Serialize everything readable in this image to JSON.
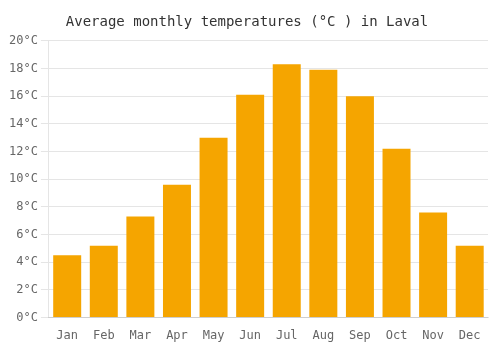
{
  "chart_data": {
    "type": "bar",
    "title": "Average monthly temperatures (°C ) in Laval",
    "categories": [
      "Jan",
      "Feb",
      "Mar",
      "Apr",
      "May",
      "Jun",
      "Jul",
      "Aug",
      "Sep",
      "Oct",
      "Nov",
      "Dec"
    ],
    "values": [
      4.5,
      5.2,
      7.3,
      9.6,
      13.0,
      16.1,
      18.3,
      17.9,
      16.0,
      12.2,
      7.6,
      5.2
    ],
    "color": "#F5A500",
    "ylim": [
      0,
      20
    ],
    "yticks": [
      {
        "value": 0,
        "label": "0°C"
      },
      {
        "value": 2,
        "label": "2°C"
      },
      {
        "value": 4,
        "label": "4°C"
      },
      {
        "value": 6,
        "label": "6°C"
      },
      {
        "value": 8,
        "label": "8°C"
      },
      {
        "value": 10,
        "label": "10°C"
      },
      {
        "value": 12,
        "label": "12°C"
      },
      {
        "value": 14,
        "label": "14°C"
      },
      {
        "value": 16,
        "label": "16°C"
      },
      {
        "value": 18,
        "label": "18°C"
      },
      {
        "value": 20,
        "label": "20°C"
      }
    ],
    "grid": true
  }
}
